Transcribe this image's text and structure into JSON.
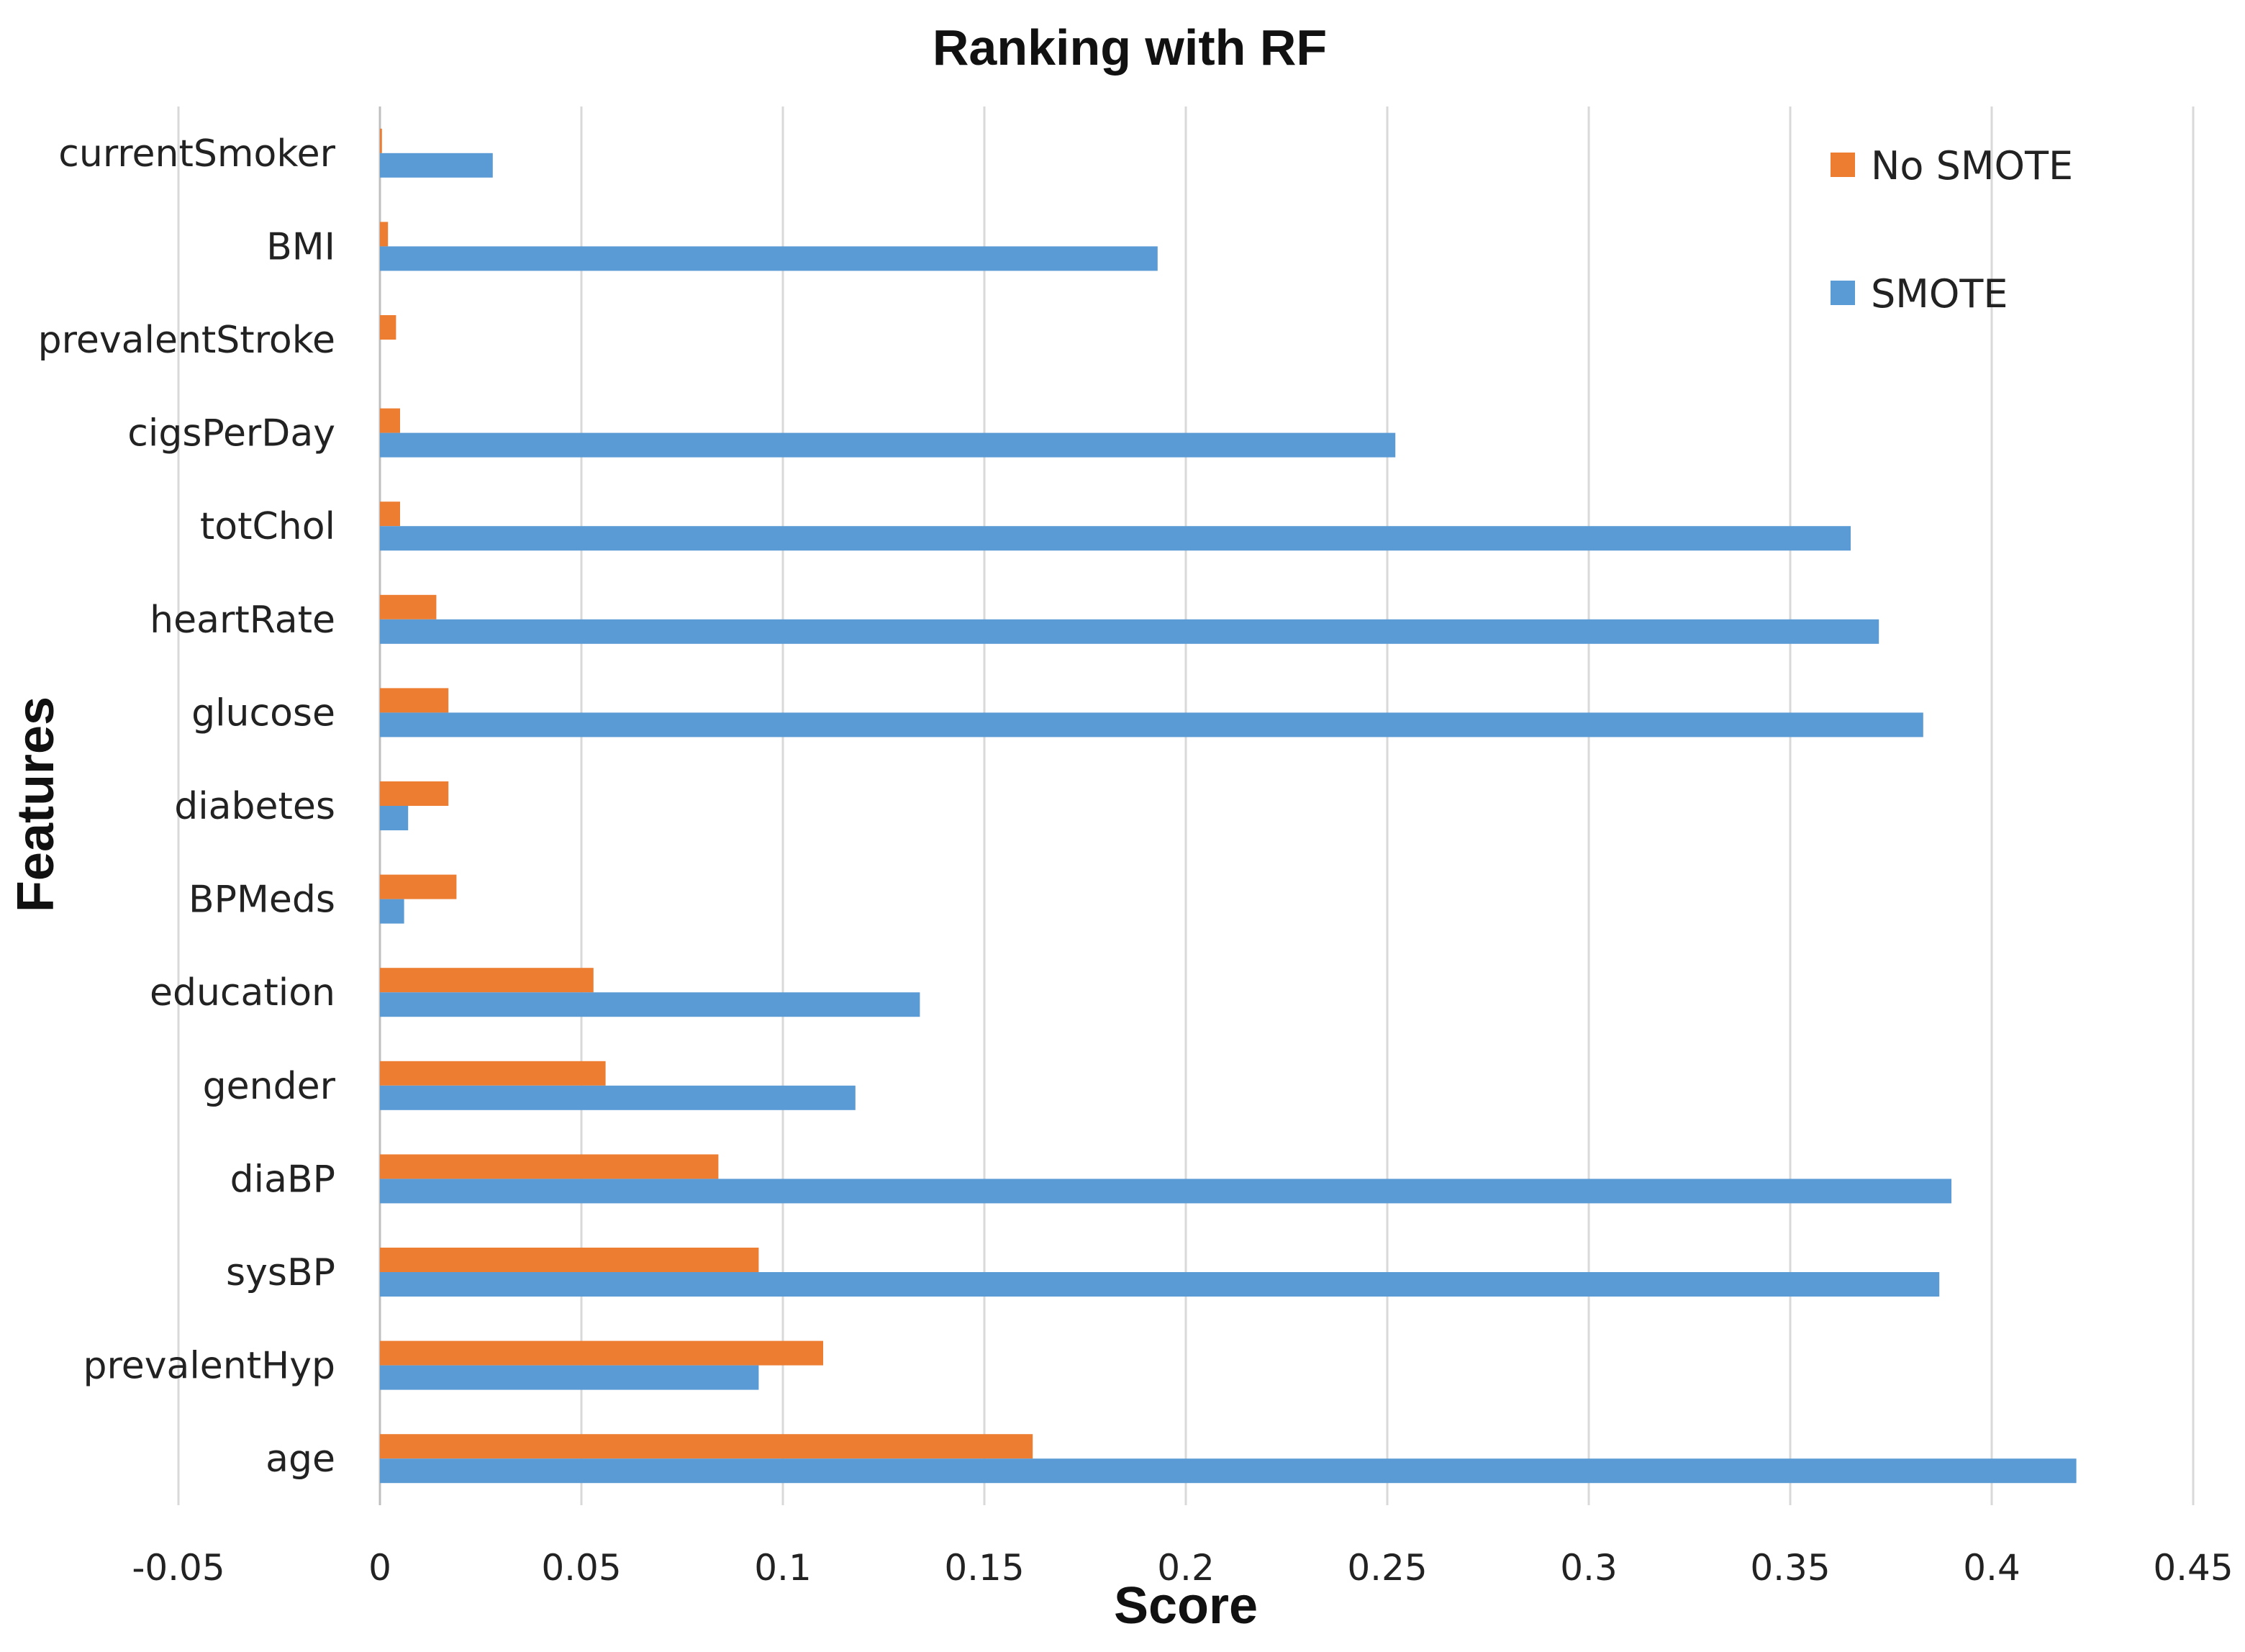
{
  "chart_data": {
    "type": "bar",
    "orientation": "horizontal",
    "title": "Ranking with RF",
    "xlabel": "Score",
    "ylabel": "Features",
    "xlim": [
      -0.05,
      0.45
    ],
    "xticks": [
      -0.05,
      0,
      0.05,
      0.1,
      0.15,
      0.2,
      0.25,
      0.3,
      0.35,
      0.4,
      0.45
    ],
    "xtick_labels": [
      "-0.05",
      "0",
      "0.05",
      "0.1",
      "0.15",
      "0.2",
      "0.25",
      "0.3",
      "0.35",
      "0.4",
      "0.45"
    ],
    "grid": "vertical",
    "legend_position": "top-right",
    "categories": [
      "currentSmoker",
      "BMI",
      "prevalentStroke",
      "cigsPerDay",
      "totChol",
      "heartRate",
      "glucose",
      "diabetes",
      "BPMeds",
      "education",
      "gender",
      "diaBP",
      "sysBP",
      "prevalentHyp",
      "age"
    ],
    "series": [
      {
        "name": "No SMOTE",
        "color": "#ED7D31",
        "values": [
          0.0005,
          0.002,
          0.004,
          0.005,
          0.005,
          0.014,
          0.017,
          0.017,
          0.019,
          0.053,
          0.056,
          0.084,
          0.094,
          0.11,
          0.162
        ]
      },
      {
        "name": "SMOTE",
        "color": "#5B9BD5",
        "values": [
          0.028,
          0.193,
          0.0,
          0.252,
          0.365,
          0.372,
          0.383,
          0.007,
          0.006,
          0.134,
          0.118,
          0.39,
          0.387,
          0.094,
          0.421
        ]
      }
    ]
  }
}
